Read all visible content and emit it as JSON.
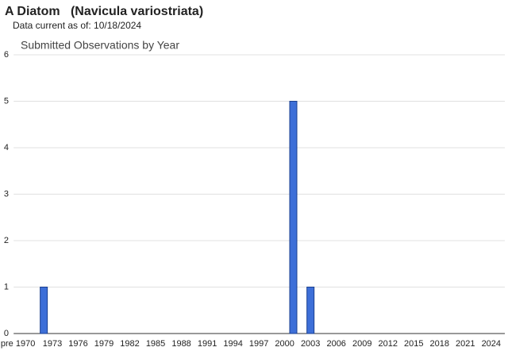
{
  "header": {
    "title": "A Diatom   (Navicula variostriata)",
    "subtitle": "Data current as of: 10/18/2024"
  },
  "chart_data": {
    "type": "bar",
    "title": "Submitted Observations by Year",
    "categories": [
      "pre 1970",
      null,
      null,
      null,
      "1973",
      null,
      null,
      "1976",
      null,
      null,
      "1979",
      null,
      null,
      "1982",
      null,
      null,
      "1985",
      null,
      null,
      "1988",
      null,
      null,
      "1991",
      null,
      null,
      "1994",
      null,
      null,
      "1997",
      null,
      null,
      "2000",
      null,
      null,
      "2003",
      null,
      null,
      "2006",
      null,
      null,
      "2009",
      null,
      null,
      "2012",
      null,
      null,
      "2015",
      null,
      null,
      "2018",
      null,
      null,
      "2021",
      null,
      null,
      "2024"
    ],
    "values": [
      0,
      0,
      0,
      1,
      0,
      0,
      0,
      0,
      0,
      0,
      0,
      0,
      0,
      0,
      0,
      0,
      0,
      0,
      0,
      0,
      0,
      0,
      0,
      0,
      0,
      0,
      0,
      0,
      0,
      0,
      0,
      0,
      5,
      0,
      1,
      0,
      0,
      0,
      0,
      0,
      0,
      0,
      0,
      0,
      0,
      0,
      0,
      0,
      0,
      0,
      0,
      0,
      0,
      0,
      0,
      0
    ],
    "color": "#3d6fd8",
    "ylim": [
      0,
      6
    ],
    "yticks": [
      0,
      1,
      2,
      3,
      4,
      5,
      6
    ],
    "grid": true
  }
}
